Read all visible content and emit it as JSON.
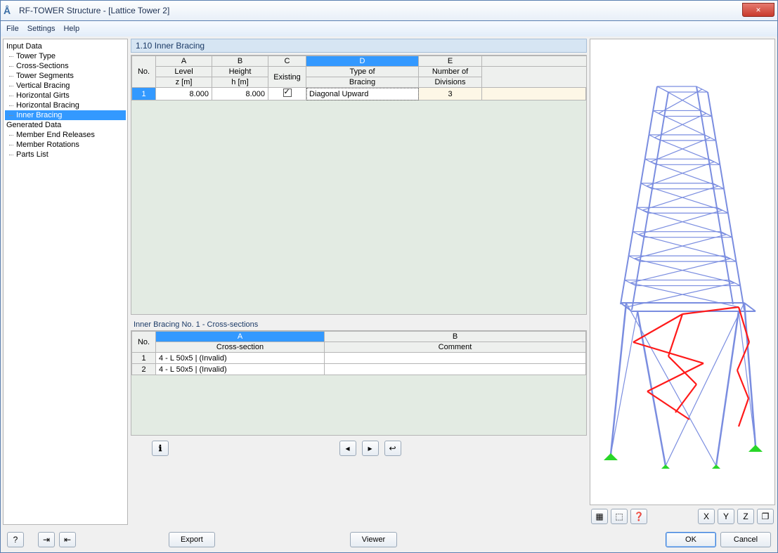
{
  "window": {
    "title": "RF-TOWER Structure - [Lattice Tower 2]",
    "close_icon": "×"
  },
  "menu": {
    "file": "File",
    "settings": "Settings",
    "help": "Help"
  },
  "tree": {
    "input_header": "Input Data",
    "items_input": [
      "Tower Type",
      "Cross-Sections",
      "Tower Segments",
      "Vertical Bracing",
      "Horizontal Girts",
      "Horizontal Bracing",
      "Inner Bracing"
    ],
    "selected_index": 6,
    "generated_header": "Generated Data",
    "items_generated": [
      "Member End Releases",
      "Member Rotations",
      "Parts List"
    ]
  },
  "section": {
    "title": "1.10 Inner Bracing",
    "cols": {
      "no": "No.",
      "A": "A",
      "A1": "Level",
      "A2": "z [m]",
      "B": "B",
      "B1": "Height",
      "B2": "h [m]",
      "C": "C",
      "C2": "Existing",
      "D": "D",
      "D1": "Type of",
      "D2": "Bracing",
      "E": "E",
      "E1": "Number of",
      "E2": "Divisions"
    },
    "row": {
      "no": "1",
      "level": "8.000",
      "height": "8.000",
      "existing": true,
      "type": "Diagonal Upward",
      "divisions": "3"
    }
  },
  "subsection": {
    "title": "Inner Bracing No. 1 - Cross-sections",
    "cols": {
      "no": "No.",
      "A": "A",
      "A2": "Cross-section",
      "B": "B",
      "B2": "Comment"
    },
    "rows": [
      {
        "no": "1",
        "cs": "4 - L 50x5 | (Invalid)",
        "comment": ""
      },
      {
        "no": "2",
        "cs": "4 - L 50x5 | (Invalid)",
        "comment": ""
      }
    ]
  },
  "buttons": {
    "export": "Export",
    "viewer": "Viewer",
    "ok": "OK",
    "cancel": "Cancel"
  },
  "icons": {
    "info": "ℹ",
    "prev": "◂",
    "next": "▸",
    "reset": "↩",
    "help": "?",
    "import": "⇥",
    "export_ico": "⇤",
    "p1": "▦",
    "p2": "⬚",
    "p3": "❓",
    "ax_x": "X",
    "ax_y": "Y",
    "ax_z": "Z",
    "cube": "❐"
  },
  "tower": {
    "main_color": "#7a8de0",
    "highlight_color": "#ff1a1a",
    "support_color": "#29d629"
  }
}
